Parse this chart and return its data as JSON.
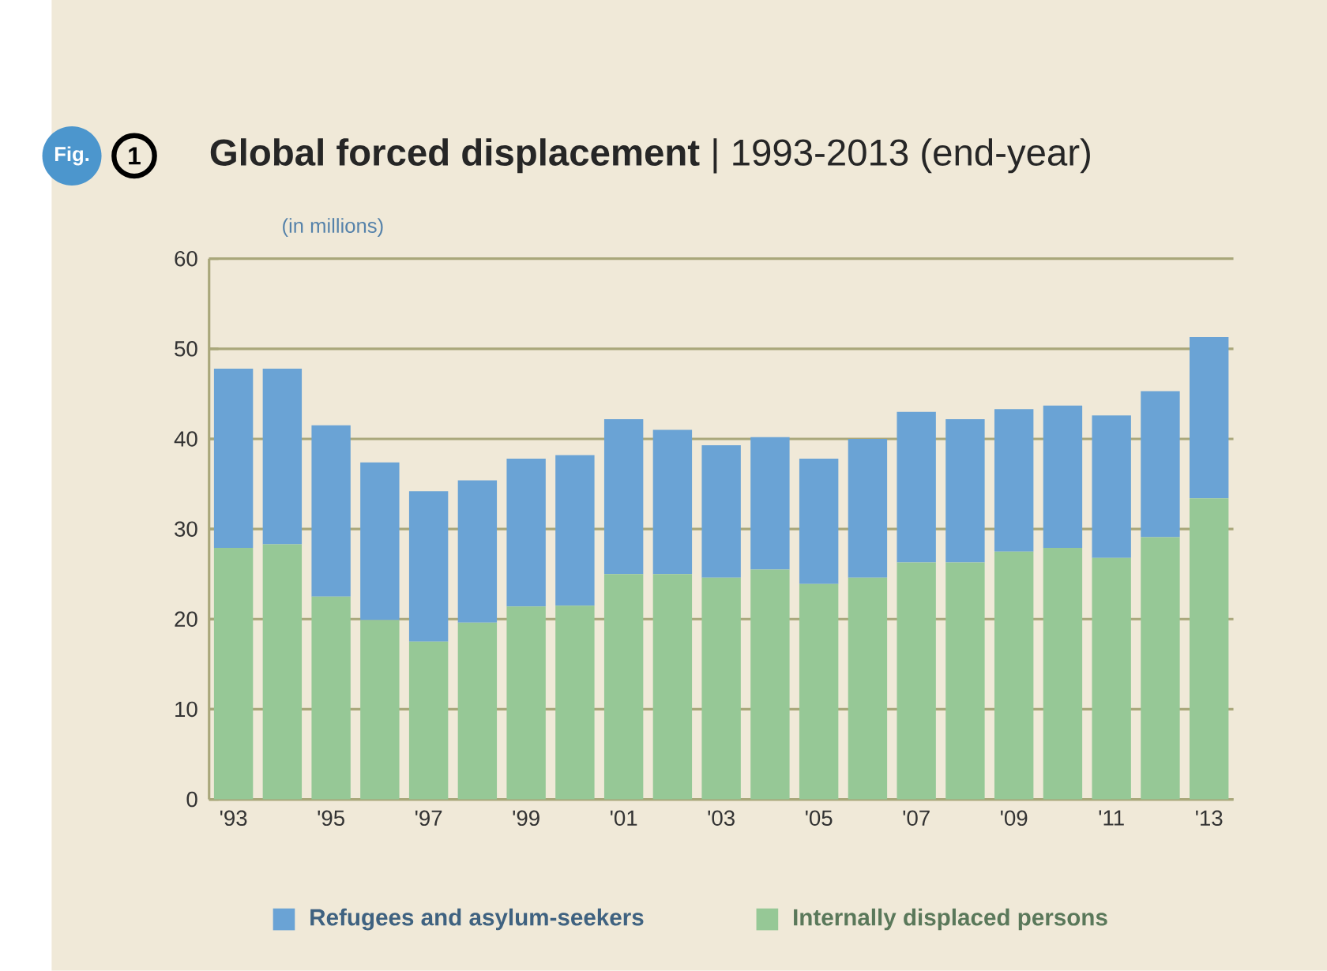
{
  "chart_data": {
    "type": "bar",
    "stacked": true,
    "title": "**Global forced displacement** | 1993-2013 (end-year)",
    "ylabel": "(in millions)",
    "annotations": [
      "Fig.",
      "1"
    ],
    "categories": [
      "'93",
      null,
      "'95",
      null,
      "'97",
      null,
      "'99",
      null,
      "'01",
      null,
      "'03",
      null,
      "'05",
      null,
      "'07",
      null,
      "'09",
      null,
      "'11",
      null,
      "'13"
    ],
    "series": [
      {
        "name": "Internally displaced persons",
        "color": "#96c896",
        "values": [
          27.9,
          28.3,
          22.5,
          19.9,
          17.5,
          19.6,
          21.4,
          21.5,
          25.0,
          25.0,
          24.6,
          25.5,
          23.9,
          24.6,
          26.3,
          26.3,
          27.5,
          27.9,
          26.8,
          29.1,
          33.4
        ]
      },
      {
        "name": "Refugees and asylum-seekers",
        "color": "#6aa3d5",
        "values": [
          19.9,
          19.5,
          19.0,
          17.5,
          16.7,
          15.8,
          16.4,
          16.7,
          17.2,
          16.0,
          14.7,
          14.7,
          13.9,
          15.4,
          16.7,
          15.9,
          15.8,
          15.8,
          15.8,
          16.2,
          17.9
        ]
      }
    ],
    "ylim": [
      0,
      60
    ],
    "yticks": [
      0,
      10,
      20,
      30,
      40,
      50,
      60
    ],
    "grid": "y",
    "legend": "bottom"
  }
}
